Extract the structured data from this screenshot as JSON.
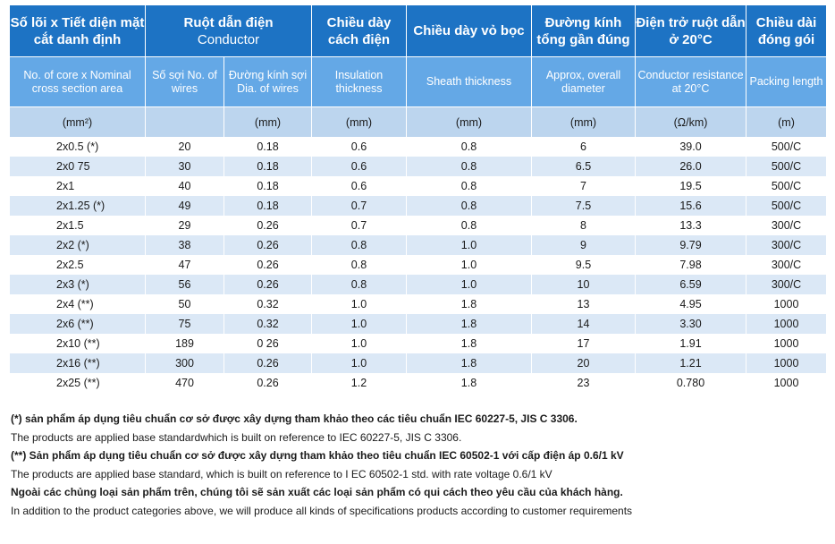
{
  "header_vi": [
    {
      "title": "Số lõi x Tiết diện mặt cắt danh định",
      "sub": ""
    },
    {
      "title": "Ruột dẫn điện",
      "sub": "Conductor"
    },
    {
      "title": "Chiều dày cách điện",
      "sub": ""
    },
    {
      "title": "Chiều dày vỏ bọc",
      "sub": ""
    },
    {
      "title": "Đường kính tổng gần đúng",
      "sub": ""
    },
    {
      "title": "Điện trở ruột dẫn ở 20°C",
      "sub": ""
    },
    {
      "title": "Chiều dài đóng gói",
      "sub": ""
    }
  ],
  "header_en": [
    "No. of core  x Nominal cross section area",
    "Số sợi No. of wires",
    "Đường kính sợi Dia. of wires",
    "Insulation thickness",
    "Sheath thickness",
    "Approx, overall diameter",
    "Conductor resistance at 20°C",
    "Packing length"
  ],
  "units": [
    "(mm²)",
    "",
    "(mm)",
    "(mm)",
    "(mm)",
    "(mm)",
    "(Ω/km)",
    "(m)"
  ],
  "rows": [
    [
      "2x0.5 (*)",
      "20",
      "0.18",
      "0.6",
      "0.8",
      "6",
      "39.0",
      "500/C"
    ],
    [
      "2x0 75",
      "30",
      "0.18",
      "0.6",
      "0.8",
      "6.5",
      "26.0",
      "500/C"
    ],
    [
      "2x1",
      "40",
      "0.18",
      "0.6",
      "0.8",
      "7",
      "19.5",
      "500/C"
    ],
    [
      "2x1.25 (*)",
      "49",
      "0.18",
      "0.7",
      "0.8",
      "7.5",
      "15.6",
      "500/C"
    ],
    [
      "2x1.5",
      "29",
      "0.26",
      "0.7",
      "0.8",
      "8",
      "13.3",
      "300/C"
    ],
    [
      "2x2 (*)",
      "38",
      "0.26",
      "0.8",
      "1.0",
      "9",
      "9.79",
      "300/C"
    ],
    [
      "2x2.5",
      "47",
      "0.26",
      "0.8",
      "1.0",
      "9.5",
      "7.98",
      "300/C"
    ],
    [
      "2x3 (*)",
      "56",
      "0.26",
      "0.8",
      "1.0",
      "10",
      "6.59",
      "300/C"
    ],
    [
      "2x4 (**)",
      "50",
      "0.32",
      "1.0",
      "1.8",
      "13",
      "4.95",
      "1000"
    ],
    [
      "2x6 (**)",
      "75",
      "0.32",
      "1.0",
      "1.8",
      "14",
      "3.30",
      "1000"
    ],
    [
      "2x10 (**)",
      "189",
      "0 26",
      "1.0",
      "1.8",
      "17",
      "1.91",
      "1000"
    ],
    [
      "2x16 (**)",
      "300",
      "0.26",
      "1.0",
      "1.8",
      "20",
      "1.21",
      "1000"
    ],
    [
      "2x25 (**)",
      "470",
      "0.26",
      "1.2",
      "1.8",
      "23",
      "0.780",
      "1000"
    ]
  ],
  "notes": [
    {
      "text": "(*) sản phẩm áp dụng tiêu chuẩn cơ sở được xây dựng tham khảo theo các tiêu chuẩn IEC 60227-5, JIS C 3306.",
      "bold": true
    },
    {
      "text": "The products are applied base standardwhich is built on reference to IEC 60227-5, JIS C 3306.",
      "bold": false
    },
    {
      "text": "(**) Sản phẩm áp dụng tiêu chuẩn cơ sở được xây dựng tham khảo theo tiêu chuẩn IEC 60502-1 với cấp điện áp 0.6/1 kV",
      "bold": true
    },
    {
      "text": "The products are applied base standard, which is built on reference to I EC 60502-1 std. with rate voltage 0.6/1 kV",
      "bold": false
    },
    {
      "text": "Ngoài các chủng loại sản phẩm trên, chúng tôi sẽ sản xuất các loại sản phẩm có qui cách theo yêu cầu của khách hàng.",
      "bold": true
    },
    {
      "text": "In addition to the product categories above, we will produce all kinds of specifications products according to customer requirements",
      "bold": false
    }
  ]
}
